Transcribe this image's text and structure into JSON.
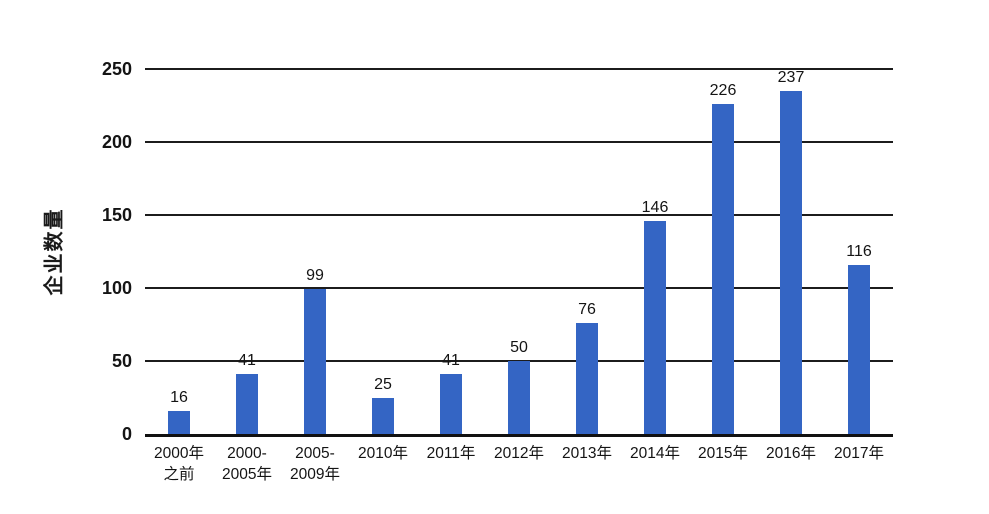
{
  "chart_data": {
    "type": "bar",
    "title": "",
    "xlabel": "",
    "ylabel": "企业数量",
    "ylim": [
      0,
      250
    ],
    "yticks": [
      0,
      50,
      100,
      150,
      200,
      250
    ],
    "grid": "horizontal",
    "legend": "none",
    "categories": [
      "2000年之前",
      "2000-2005年",
      "2005-2009年",
      "2010年",
      "2011年",
      "2012年",
      "2013年",
      "2014年",
      "2015年",
      "2016年",
      "2017年"
    ],
    "category_lines": [
      [
        "2000年",
        "之前"
      ],
      [
        "2000-",
        "2005年"
      ],
      [
        "2005-",
        "2009年"
      ],
      [
        "2010年"
      ],
      [
        "2011年"
      ],
      [
        "2012年"
      ],
      [
        "2013年"
      ],
      [
        "2014年"
      ],
      [
        "2015年"
      ],
      [
        "2016年"
      ],
      [
        "2017年"
      ]
    ],
    "values": [
      16,
      41,
      99,
      25,
      41,
      50,
      76,
      146,
      226,
      237,
      116
    ],
    "bar_color": "#3465C4",
    "grid_color": "#1c1c1c",
    "axis_color": "#111111",
    "text_color": "#141414"
  }
}
